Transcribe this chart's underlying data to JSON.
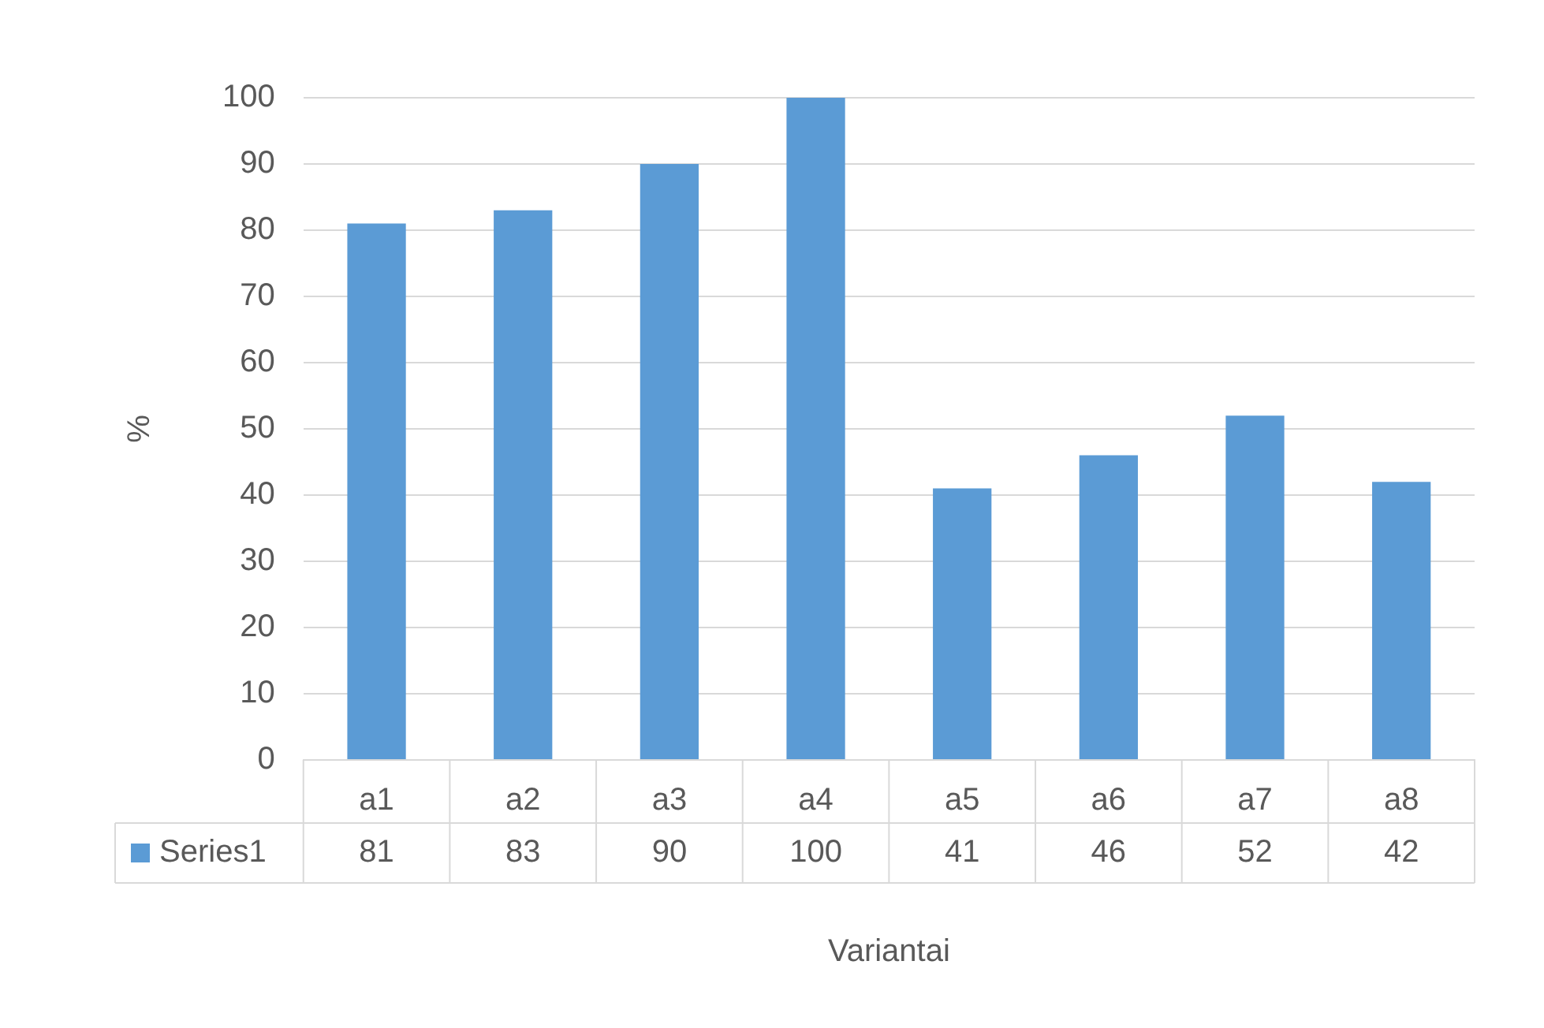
{
  "chart_data": {
    "type": "bar",
    "xlabel": "Variantai",
    "ylabel": "%",
    "categories": [
      "a1",
      "a2",
      "a3",
      "a4",
      "a5",
      "a6",
      "a7",
      "a8"
    ],
    "series": [
      {
        "name": "Series1",
        "color": "#5b9bd5",
        "values": [
          81,
          83,
          90,
          100,
          41,
          46,
          52,
          42
        ]
      }
    ],
    "ylim": [
      0,
      100
    ],
    "yticks": [
      0,
      10,
      20,
      30,
      40,
      50,
      60,
      70,
      80,
      90,
      100
    ],
    "grid": "y",
    "legend": "bottom",
    "data_labels": true
  }
}
